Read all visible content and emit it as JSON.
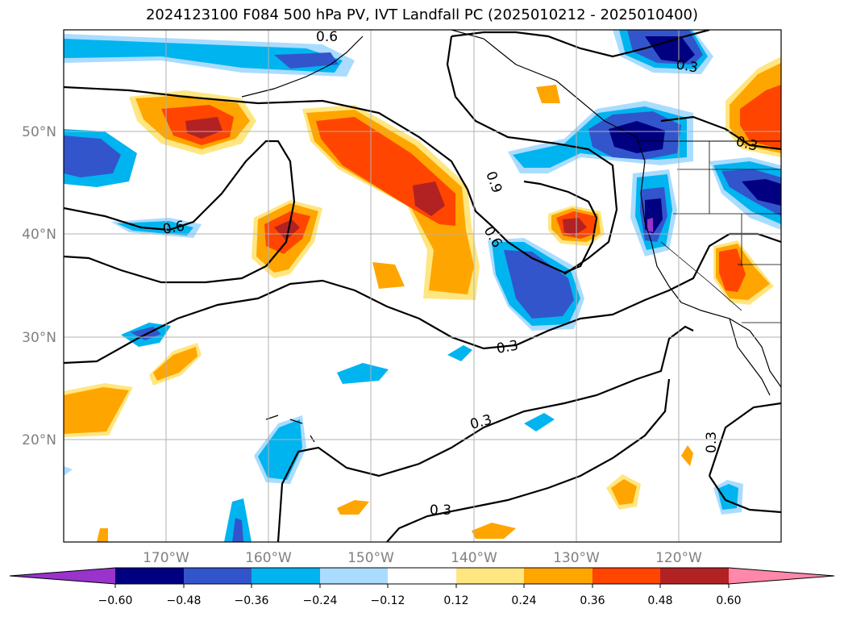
{
  "title": "2024123100 F084 500 hPa PV, IVT Landfall PC (2025010212 - 2025010400)",
  "lat_labels": [
    "50°N",
    "40°N",
    "30°N",
    "20°N"
  ],
  "lon_labels": [
    "170°W",
    "160°W",
    "150°W",
    "140°W",
    "130°W",
    "120°W"
  ],
  "contour_labels": [
    "0.6",
    "0.3",
    "0.9",
    "0.6",
    "0.6",
    "0.3",
    "0.3",
    "0.3",
    "0.3",
    "0.3"
  ],
  "colorbar": {
    "ticks": [
      "−0.60",
      "−0.48",
      "−0.36",
      "−0.24",
      "−0.12",
      "0.12",
      "0.24",
      "0.36",
      "0.48",
      "0.60"
    ],
    "colors": [
      "#9933cc",
      "#000080",
      "#3355cc",
      "#00b4f0",
      "#aadcff",
      "#ffffff",
      "#ffe680",
      "#ffa500",
      "#ff4500",
      "#b22222",
      "#ff88aa"
    ]
  },
  "palette": {
    "pos1": "#ffe680",
    "pos2": "#ffa500",
    "pos3": "#ff4500",
    "pos4": "#b22222",
    "neg1": "#aadcff",
    "neg2": "#00b4f0",
    "neg3": "#3355cc",
    "neg4": "#000080",
    "neg5": "#9933cc",
    "grid": "#b0b0b0",
    "tick": "#808080"
  }
}
